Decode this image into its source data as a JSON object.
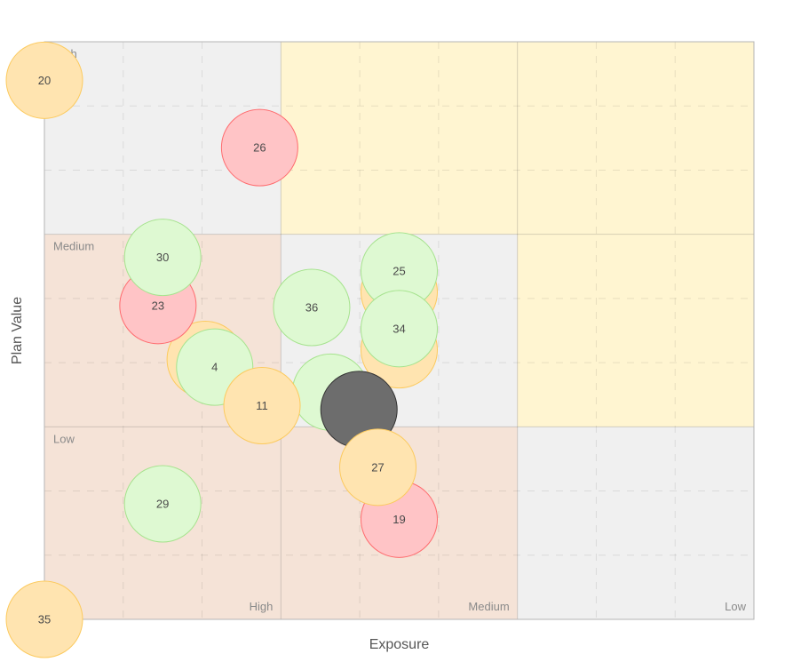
{
  "chart_data": {
    "type": "scatter",
    "title": "",
    "xlabel": "Exposure",
    "ylabel": "Plan Value",
    "xlim": [
      0,
      3
    ],
    "ylim": [
      0,
      3
    ],
    "grid": true,
    "x_zone_labels": [
      "High",
      "Medium",
      "Low"
    ],
    "y_zone_labels": [
      "Low",
      "Medium",
      "High"
    ],
    "zone_colors": [
      [
        "#f5e3d7",
        "#f5e3d7",
        "#f0f0f0"
      ],
      [
        "#f5e3d7",
        "#f0f0f0",
        "#fff5d1"
      ],
      [
        "#f0f0f0",
        "#fff5d1",
        "#fff5d1"
      ]
    ],
    "category_colors": {
      "red": {
        "fill": "#ffc4c6",
        "stroke": "#ff6b6e"
      },
      "amber": {
        "fill": "#ffe4b0",
        "stroke": "#fcca5e"
      },
      "green": {
        "fill": "#def9d2",
        "stroke": "#a6e38e"
      },
      "dark": {
        "fill": "#6d6d6d",
        "stroke": "#333333"
      }
    },
    "points": [
      {
        "label": "",
        "x": 1.5,
        "y": 1.4,
        "category": "amber"
      },
      {
        "label": "",
        "x": 1.5,
        "y": 1.7,
        "category": "amber"
      },
      {
        "label": "",
        "x": 0.68,
        "y": 1.35,
        "category": "amber"
      },
      {
        "label": "",
        "x": 1.21,
        "y": 1.18,
        "category": "green"
      },
      {
        "label": "20",
        "x": 0.0,
        "y": 2.8,
        "category": "amber"
      },
      {
        "label": "26",
        "x": 0.91,
        "y": 2.45,
        "category": "red"
      },
      {
        "label": "23",
        "x": 0.48,
        "y": 1.63,
        "category": "red"
      },
      {
        "label": "30",
        "x": 0.5,
        "y": 1.88,
        "category": "green"
      },
      {
        "label": "4",
        "x": 0.72,
        "y": 1.31,
        "category": "green"
      },
      {
        "label": "36",
        "x": 1.13,
        "y": 1.62,
        "category": "green"
      },
      {
        "label": "25",
        "x": 1.5,
        "y": 1.81,
        "category": "green"
      },
      {
        "label": "34",
        "x": 1.5,
        "y": 1.51,
        "category": "green"
      },
      {
        "label": "11",
        "x": 0.92,
        "y": 1.11,
        "category": "amber"
      },
      {
        "label": "",
        "x": 1.33,
        "y": 1.09,
        "category": "dark"
      },
      {
        "label": "29",
        "x": 0.5,
        "y": 0.6,
        "category": "green"
      },
      {
        "label": "19",
        "x": 1.5,
        "y": 0.52,
        "category": "red"
      },
      {
        "label": "27",
        "x": 1.41,
        "y": 0.79,
        "category": "amber"
      },
      {
        "label": "35",
        "x": 0.0,
        "y": 0.0,
        "category": "amber"
      }
    ]
  }
}
